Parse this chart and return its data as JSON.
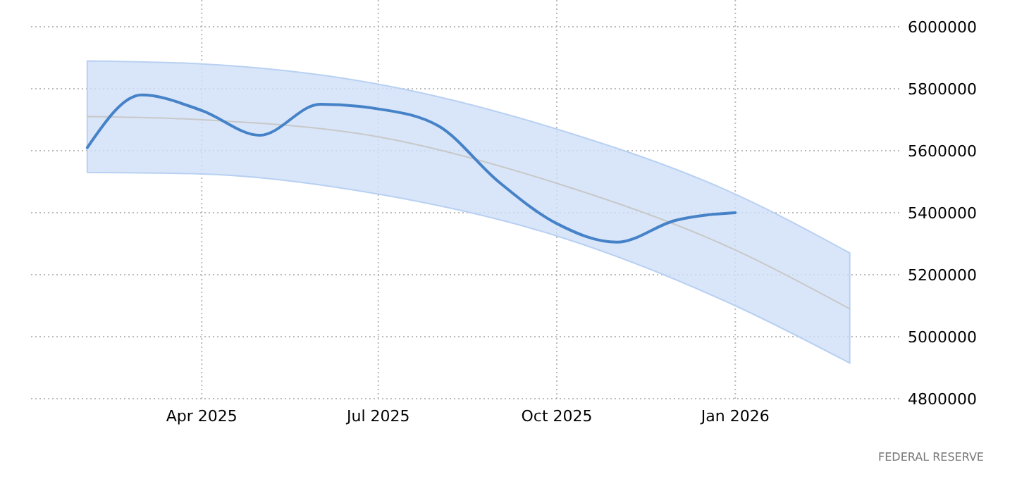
{
  "chart_data": {
    "type": "line",
    "x": [
      "2025-02",
      "2025-03",
      "2025-04",
      "2025-05",
      "2025-06",
      "2025-07",
      "2025-08",
      "2025-09",
      "2025-10",
      "2025-11",
      "2025-12",
      "2026-01"
    ],
    "series": [
      {
        "color": "#4682c8",
        "values": [
          5610000,
          5780000,
          5730000,
          5650000,
          5750000,
          5735000,
          5680000,
          5500000,
          5365000,
          5305000,
          5375000,
          5400000
        ]
      },
      {
        "color": "#c8c8c8",
        "x": [
          "2025-02",
          "2025-04",
          "2025-07",
          "2025-10",
          "2026-01",
          "2026-03"
        ],
        "values": [
          5710000,
          5700000,
          5645000,
          5495000,
          5280000,
          5090000
        ],
        "lower": [
          5530000,
          5525000,
          5460000,
          5325000,
          5100000,
          4915000
        ],
        "upper": [
          5890000,
          5880000,
          5815000,
          5670000,
          5460000,
          5270000
        ]
      }
    ],
    "xlim": [
      "2025-01-03",
      "2026-03-28"
    ],
    "xticks": [
      {
        "value": "2025-04",
        "label": "Apr 2025"
      },
      {
        "value": "2025-07",
        "label": "Jul 2025"
      },
      {
        "value": "2025-10",
        "label": "Oct 2025"
      },
      {
        "value": "2026-01",
        "label": "Jan 2026"
      }
    ],
    "ylim": [
      4800000,
      6000000
    ],
    "yticks": [
      4800000,
      5000000,
      5200000,
      5400000,
      5600000,
      5800000,
      6000000
    ],
    "grid": true,
    "annotations": [
      "FEDERAL RESERVE"
    ]
  }
}
